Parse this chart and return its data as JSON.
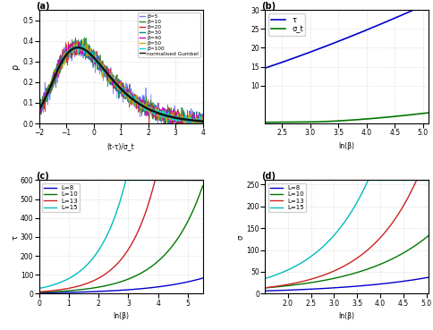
{
  "panel_a": {
    "xlabel": "(t-τ)/σ_t",
    "ylabel": "ρ",
    "xlim": [
      -2,
      4
    ],
    "ylim": [
      0,
      0.55
    ],
    "betas": [
      5,
      10,
      20,
      30,
      40,
      50,
      100
    ],
    "beta_colors": [
      "#7777ff",
      "#228B22",
      "#cc2222",
      "#008888",
      "#cc00cc",
      "#ccaa00",
      "#00dddd"
    ],
    "gumbel_color": "#111111",
    "yticks": [
      0,
      0.1,
      0.2,
      0.3,
      0.4,
      0.5
    ],
    "xticks": [
      -2,
      -1,
      0,
      1,
      2,
      3,
      4
    ],
    "gumbel_mu": -0.5772,
    "gumbel_noise_scale": 0.012
  },
  "panel_b": {
    "xlabel": "ln(β)",
    "tau_label": "τ",
    "sigma_label": "σ_t",
    "xlim": [
      2.2,
      5.1
    ],
    "ylim": [
      0,
      30
    ],
    "tau_color": "#0000cc",
    "sigma_color": "#007700",
    "xticks": [
      2.5,
      3.0,
      3.5,
      4.0,
      4.5,
      5.0
    ],
    "yticks": [
      10,
      15,
      20,
      25,
      30
    ]
  },
  "panel_c": {
    "xlabel": "ln(β)",
    "ylabel": "τ",
    "xlim": [
      0,
      5.5
    ],
    "ylim": [
      0,
      600
    ],
    "L_values": [
      8,
      10,
      13,
      15
    ],
    "L_colors": [
      "#0000cc",
      "#007700",
      "#cc2222",
      "#00bbbb"
    ],
    "xticks": [
      0,
      1,
      2,
      3,
      4,
      5
    ],
    "yticks": [
      0,
      100,
      200,
      300,
      400,
      500,
      600
    ]
  },
  "panel_d": {
    "xlabel": "ln(β)",
    "ylabel": "σ",
    "xlim": [
      1.5,
      5.05
    ],
    "ylim": [
      0,
      260
    ],
    "L_values": [
      8,
      10,
      13,
      15
    ],
    "L_colors": [
      "#0000cc",
      "#007700",
      "#cc2222",
      "#00bbbb"
    ],
    "xticks": [
      2.0,
      2.5,
      3.0,
      3.5,
      4.0,
      4.5,
      5.0
    ],
    "yticks": [
      0,
      50,
      100,
      150,
      200,
      250
    ]
  }
}
